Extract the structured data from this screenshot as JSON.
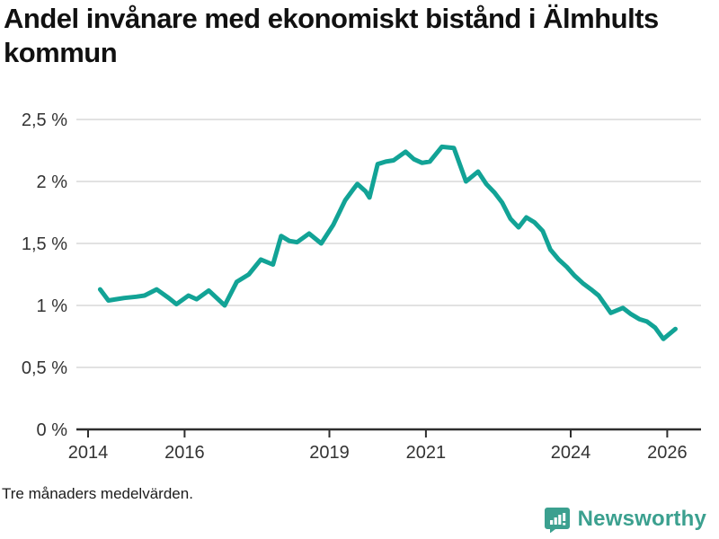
{
  "title": "Andel invånare med ekonomiskt bistånd i Älmhults kommun",
  "footnote": "Tre månaders medelvärden.",
  "brand": {
    "name": "Newsworthy",
    "icon": "bar-chart-speech-bubble-icon",
    "color": "#3ba08f"
  },
  "colors": {
    "line": "#12a396",
    "grid": "#d9d9d9",
    "axis": "#2e2e2e",
    "tick_text": "#333333",
    "title_text": "#111111"
  },
  "chart_data": {
    "type": "line",
    "title": "Andel invånare med ekonomiskt bistånd i Älmhults kommun",
    "xlabel": "",
    "ylabel": "",
    "unit": "%",
    "grid": "horizontal",
    "legend_position": "none",
    "xlim": [
      2013.76,
      2026.7
    ],
    "ylim": [
      0,
      2.6
    ],
    "x_ticks": [
      {
        "value": 2014,
        "label": "2014"
      },
      {
        "value": 2016,
        "label": "2016"
      },
      {
        "value": 2019,
        "label": "2019"
      },
      {
        "value": 2021,
        "label": "2021"
      },
      {
        "value": 2024,
        "label": "2024"
      },
      {
        "value": 2026,
        "label": "2026"
      }
    ],
    "y_ticks": [
      {
        "value": 0,
        "label": "0 %"
      },
      {
        "value": 0.5,
        "label": "0,5 %"
      },
      {
        "value": 1,
        "label": "1 %"
      },
      {
        "value": 1.5,
        "label": "1,5 %"
      },
      {
        "value": 2,
        "label": "2 %"
      },
      {
        "value": 2.5,
        "label": "2,5 %"
      }
    ],
    "series": [
      {
        "name": "Andel invånare med ekonomiskt bistånd",
        "color": "#12a396",
        "points": [
          [
            2014.25,
            1.13
          ],
          [
            2014.42,
            1.04
          ],
          [
            2014.58,
            1.05
          ],
          [
            2014.75,
            1.06
          ],
          [
            2015.0,
            1.07
          ],
          [
            2015.17,
            1.08
          ],
          [
            2015.42,
            1.13
          ],
          [
            2015.67,
            1.06
          ],
          [
            2015.83,
            1.01
          ],
          [
            2016.08,
            1.08
          ],
          [
            2016.25,
            1.05
          ],
          [
            2016.5,
            1.12
          ],
          [
            2016.83,
            1.0
          ],
          [
            2017.08,
            1.19
          ],
          [
            2017.33,
            1.25
          ],
          [
            2017.58,
            1.37
          ],
          [
            2017.83,
            1.33
          ],
          [
            2018.0,
            1.56
          ],
          [
            2018.17,
            1.52
          ],
          [
            2018.33,
            1.51
          ],
          [
            2018.58,
            1.58
          ],
          [
            2018.83,
            1.5
          ],
          [
            2019.08,
            1.65
          ],
          [
            2019.33,
            1.85
          ],
          [
            2019.5,
            1.94
          ],
          [
            2019.58,
            1.98
          ],
          [
            2019.75,
            1.92
          ],
          [
            2019.83,
            1.87
          ],
          [
            2020.0,
            2.14
          ],
          [
            2020.17,
            2.16
          ],
          [
            2020.33,
            2.17
          ],
          [
            2020.58,
            2.24
          ],
          [
            2020.75,
            2.18
          ],
          [
            2020.92,
            2.15
          ],
          [
            2021.08,
            2.16
          ],
          [
            2021.33,
            2.28
          ],
          [
            2021.58,
            2.27
          ],
          [
            2021.83,
            2.0
          ],
          [
            2022.08,
            2.08
          ],
          [
            2022.25,
            1.98
          ],
          [
            2022.42,
            1.91
          ],
          [
            2022.58,
            1.83
          ],
          [
            2022.75,
            1.7
          ],
          [
            2022.92,
            1.63
          ],
          [
            2023.08,
            1.71
          ],
          [
            2023.25,
            1.67
          ],
          [
            2023.42,
            1.6
          ],
          [
            2023.58,
            1.45
          ],
          [
            2023.75,
            1.37
          ],
          [
            2023.92,
            1.31
          ],
          [
            2024.08,
            1.24
          ],
          [
            2024.25,
            1.18
          ],
          [
            2024.42,
            1.13
          ],
          [
            2024.58,
            1.08
          ],
          [
            2024.83,
            0.94
          ],
          [
            2025.08,
            0.98
          ],
          [
            2025.25,
            0.93
          ],
          [
            2025.42,
            0.89
          ],
          [
            2025.58,
            0.87
          ],
          [
            2025.75,
            0.82
          ],
          [
            2025.92,
            0.73
          ],
          [
            2026.17,
            0.81
          ]
        ]
      }
    ]
  }
}
